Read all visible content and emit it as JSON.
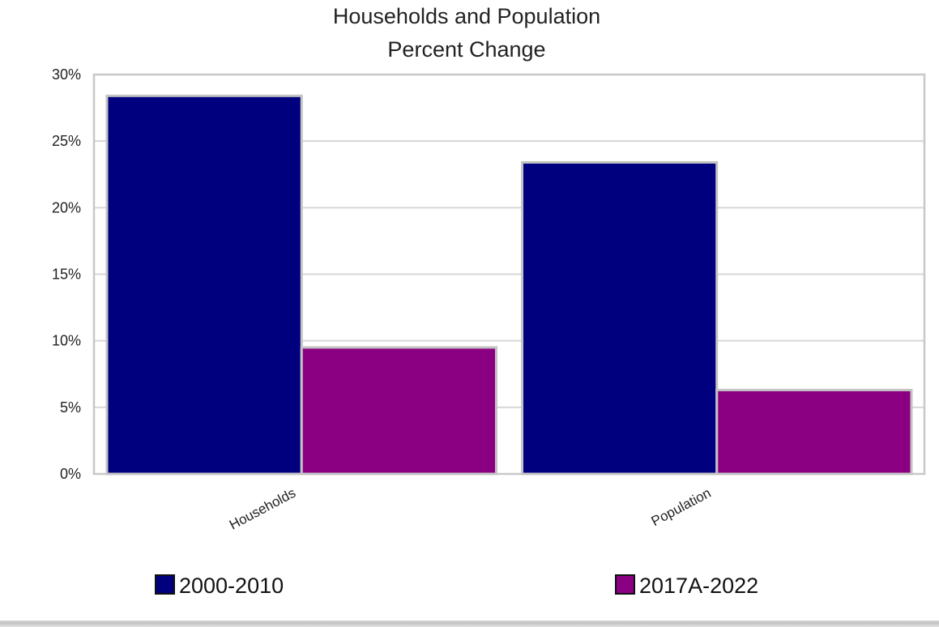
{
  "chart_data": {
    "type": "bar",
    "title": "Households and Population",
    "subtitle": "Percent Change",
    "categories": [
      "Households",
      "Population"
    ],
    "series": [
      {
        "name": "2000-2010",
        "values": [
          28.4,
          23.4
        ],
        "color": "#00007f"
      },
      {
        "name": "2017A-2022",
        "values": [
          9.5,
          6.3
        ],
        "color": "#8b0082"
      }
    ],
    "y_ticks": [
      "0%",
      "5%",
      "10%",
      "15%",
      "20%",
      "25%",
      "30%"
    ],
    "ylim": [
      0,
      30
    ],
    "y_step": 5,
    "grid": true,
    "legend_position": "bottom",
    "xlabel": "",
    "ylabel": ""
  }
}
